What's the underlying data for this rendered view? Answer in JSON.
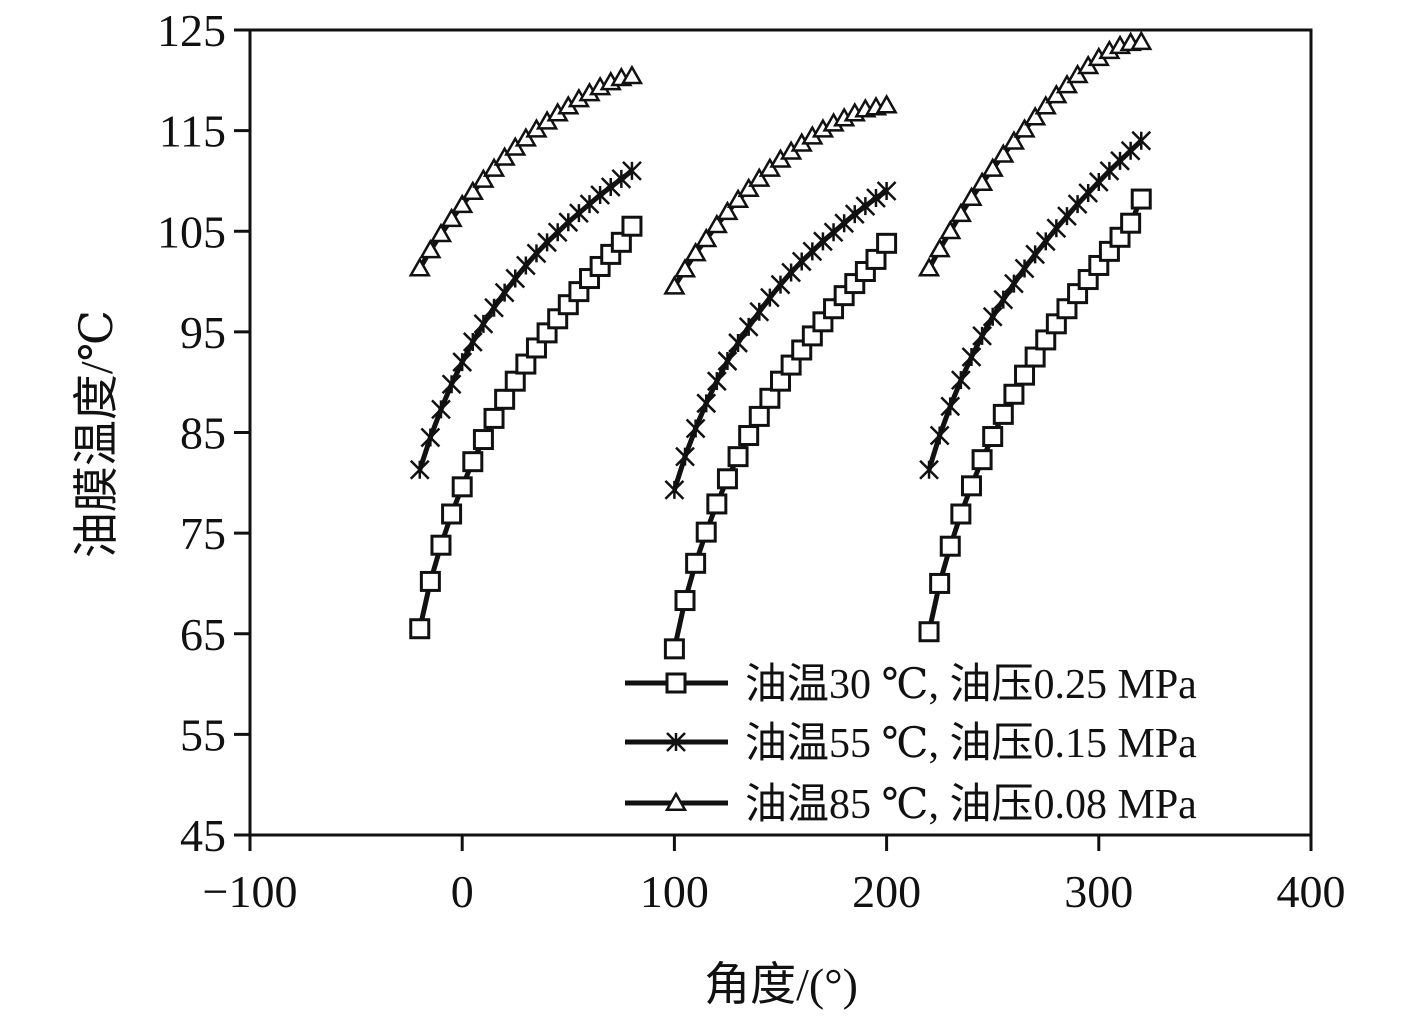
{
  "chart_data": {
    "type": "line",
    "xlabel": "角度/(°)",
    "ylabel": "油膜温度/℃",
    "xlim": [
      -100,
      400
    ],
    "ylim": [
      45,
      125
    ],
    "x_ticks": [
      -100,
      0,
      100,
      200,
      300,
      400
    ],
    "x_tick_labels": [
      "−100",
      "0",
      "100",
      "200",
      "300",
      "400"
    ],
    "y_ticks": [
      45,
      55,
      65,
      75,
      85,
      95,
      105,
      115,
      125
    ],
    "y_tick_labels": [
      "45",
      "55",
      "65",
      "75",
      "85",
      "95",
      "105",
      "115",
      "125"
    ],
    "grid": false,
    "legend_position": "bottom-right",
    "series": [
      {
        "name": "油温30 ℃, 油压0.25 MPa",
        "marker": "square",
        "segments": [
          {
            "x": [
              -20,
              -15,
              -10,
              -5,
              0,
              5,
              10,
              15,
              20,
              25,
              30,
              35,
              40,
              45,
              50,
              55,
              60,
              65,
              70,
              75,
              80
            ],
            "y": [
              65.5,
              70.2,
              73.8,
              76.9,
              79.6,
              82.1,
              84.3,
              86.4,
              88.3,
              90.1,
              91.8,
              93.4,
              94.9,
              96.3,
              97.7,
              99.0,
              100.3,
              101.5,
              102.7,
              103.9,
              105.5
            ]
          },
          {
            "x": [
              100,
              105,
              110,
              115,
              120,
              125,
              130,
              135,
              140,
              145,
              150,
              155,
              160,
              165,
              170,
              175,
              180,
              185,
              190,
              195,
              200
            ],
            "y": [
              63.5,
              68.3,
              72.0,
              75.1,
              77.9,
              80.4,
              82.6,
              84.7,
              86.6,
              88.4,
              90.1,
              91.7,
              93.2,
              94.6,
              96.0,
              97.3,
              98.6,
              99.8,
              101.0,
              102.2,
              103.8
            ]
          },
          {
            "x": [
              220,
              225,
              230,
              235,
              240,
              245,
              250,
              255,
              260,
              265,
              270,
              275,
              280,
              285,
              290,
              295,
              300,
              305,
              310,
              315,
              320
            ],
            "y": [
              65.2,
              70.0,
              73.7,
              76.9,
              79.7,
              82.3,
              84.6,
              86.8,
              88.8,
              90.7,
              92.5,
              94.2,
              95.8,
              97.3,
              98.8,
              100.2,
              101.6,
              103.0,
              104.4,
              105.8,
              108.2
            ]
          }
        ]
      },
      {
        "name": "油温55 ℃, 油压0.15 MPa",
        "marker": "star",
        "segments": [
          {
            "x": [
              -20,
              -15,
              -10,
              -5,
              0,
              5,
              10,
              15,
              20,
              25,
              30,
              35,
              40,
              45,
              50,
              55,
              60,
              65,
              70,
              75,
              80
            ],
            "y": [
              81.3,
              84.5,
              87.3,
              89.8,
              92.0,
              94.0,
              95.8,
              97.4,
              98.9,
              100.3,
              101.6,
              102.8,
              103.9,
              104.9,
              105.9,
              106.8,
              107.7,
              108.6,
              109.4,
              110.2,
              111.0
            ]
          },
          {
            "x": [
              100,
              105,
              110,
              115,
              120,
              125,
              130,
              135,
              140,
              145,
              150,
              155,
              160,
              165,
              170,
              175,
              180,
              185,
              190,
              195,
              200
            ],
            "y": [
              79.3,
              82.6,
              85.4,
              87.9,
              90.1,
              92.1,
              93.9,
              95.5,
              97.0,
              98.4,
              99.7,
              100.9,
              102.0,
              103.0,
              104.0,
              104.9,
              105.8,
              106.7,
              107.5,
              108.3,
              109.0
            ]
          },
          {
            "x": [
              220,
              225,
              230,
              235,
              240,
              245,
              250,
              255,
              260,
              265,
              270,
              275,
              280,
              285,
              290,
              295,
              300,
              305,
              310,
              315,
              320
            ],
            "y": [
              81.3,
              84.7,
              87.6,
              90.2,
              92.5,
              94.6,
              96.5,
              98.2,
              99.8,
              101.3,
              102.7,
              104.0,
              105.3,
              106.5,
              107.7,
              108.8,
              109.9,
              111.0,
              112.0,
              113.0,
              114.0
            ]
          }
        ]
      },
      {
        "name": "油温85 ℃, 油压0.08 MPa",
        "marker": "triangle",
        "segments": [
          {
            "x": [
              -20,
              -15,
              -10,
              -5,
              0,
              5,
              10,
              15,
              20,
              25,
              30,
              35,
              40,
              45,
              50,
              55,
              60,
              65,
              70,
              75,
              80
            ],
            "y": [
              101.3,
              103.1,
              104.7,
              106.2,
              107.6,
              108.9,
              110.1,
              111.2,
              112.3,
              113.3,
              114.2,
              115.1,
              115.9,
              116.7,
              117.4,
              118.1,
              118.7,
              119.3,
              119.8,
              120.2,
              120.4
            ]
          },
          {
            "x": [
              100,
              105,
              110,
              115,
              120,
              125,
              130,
              135,
              140,
              145,
              150,
              155,
              160,
              165,
              170,
              175,
              180,
              185,
              190,
              195,
              200
            ],
            "y": [
              99.5,
              101.2,
              102.8,
              104.2,
              105.6,
              106.9,
              108.1,
              109.2,
              110.2,
              111.2,
              112.1,
              112.9,
              113.7,
              114.4,
              115.1,
              115.7,
              116.2,
              116.7,
              117.1,
              117.3,
              117.5
            ]
          },
          {
            "x": [
              220,
              225,
              230,
              235,
              240,
              245,
              250,
              255,
              260,
              265,
              270,
              275,
              280,
              285,
              290,
              295,
              300,
              305,
              310,
              315,
              320
            ],
            "y": [
              101.3,
              103.2,
              105.0,
              106.7,
              108.3,
              109.8,
              111.2,
              112.6,
              113.9,
              115.1,
              116.3,
              117.4,
              118.5,
              119.5,
              120.5,
              121.4,
              122.2,
              122.9,
              123.4,
              123.7,
              123.8
            ]
          }
        ]
      }
    ]
  }
}
